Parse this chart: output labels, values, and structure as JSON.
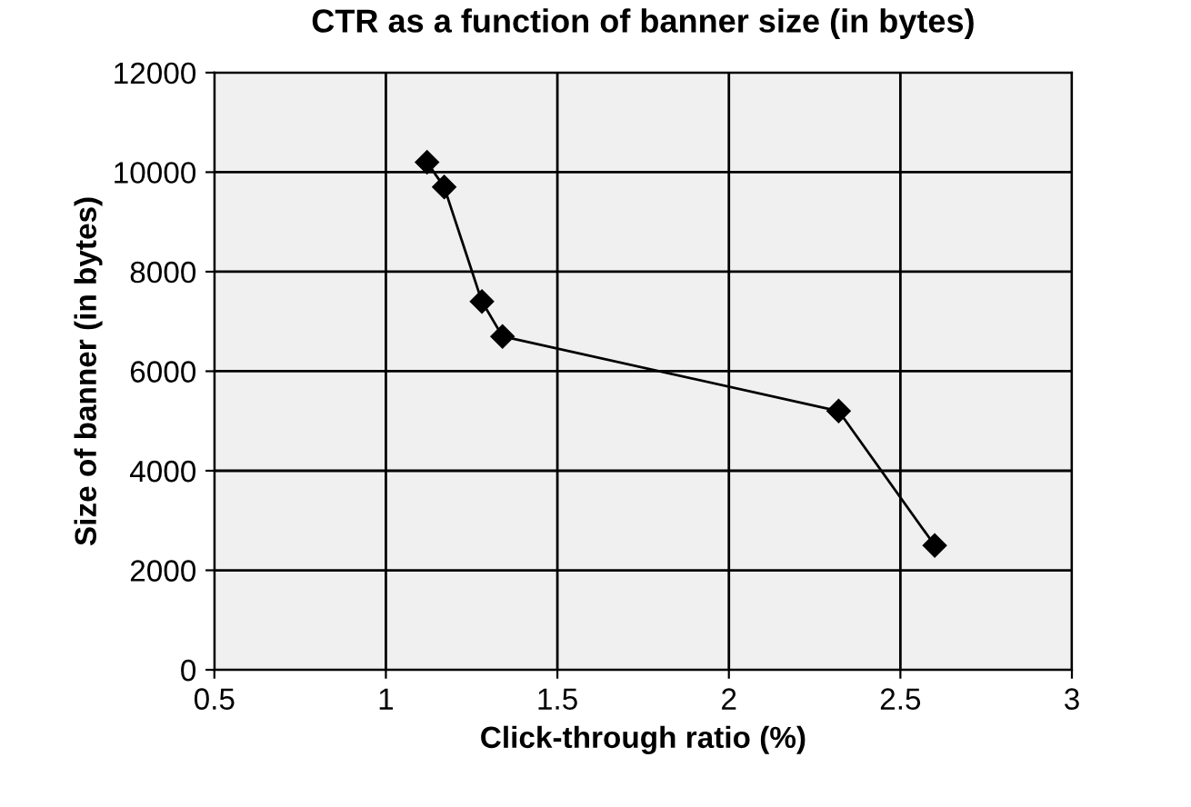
{
  "chart_data": {
    "type": "line",
    "title": "CTR as a function of banner size (in bytes)",
    "xlabel": "Click-through ratio (%)",
    "ylabel": "Size of banner (in bytes)",
    "x": [
      1.12,
      1.17,
      1.28,
      1.34,
      2.32,
      2.6
    ],
    "series": [
      {
        "color": "#000000",
        "values": [
          10200,
          9700,
          7400,
          6700,
          5200,
          2500
        ]
      }
    ],
    "xlim": [
      0.5,
      3
    ],
    "xticks": [
      0.5,
      1,
      1.5,
      2,
      2.5,
      3
    ],
    "ylim": [
      0,
      12000
    ],
    "yticks": [
      0,
      2000,
      4000,
      6000,
      8000,
      10000,
      12000
    ],
    "grid": true,
    "marker": "diamond",
    "line_style": "solid"
  }
}
